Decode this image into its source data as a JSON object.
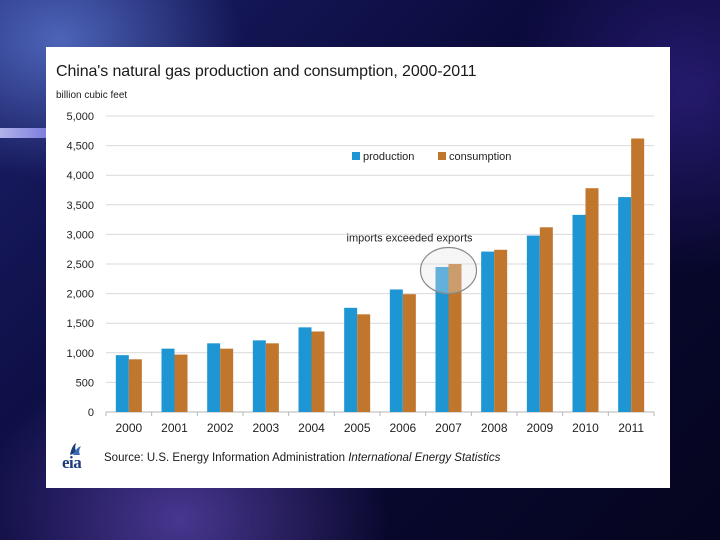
{
  "slide": {
    "source_prefix": "Source: U.S. Energy Information Administration",
    "source_publication": "International Energy Statistics",
    "logo_text": "eia"
  },
  "colors": {
    "production": "#1e96d4",
    "consumption": "#c0762c",
    "grid": "#d9d9d9",
    "axis_text": "#222222"
  },
  "chart_data": {
    "type": "bar",
    "title": "China's natural gas production and consumption, 2000-2011",
    "ylabel": "billion cubic feet",
    "xlabel": "",
    "categories": [
      "2000",
      "2001",
      "2002",
      "2003",
      "2004",
      "2005",
      "2006",
      "2007",
      "2008",
      "2009",
      "2010",
      "2011"
    ],
    "series": [
      {
        "name": "production",
        "values": [
          960,
          1070,
          1160,
          1210,
          1430,
          1760,
          2070,
          2450,
          2710,
          2980,
          3330,
          3630
        ]
      },
      {
        "name": "consumption",
        "values": [
          890,
          970,
          1070,
          1160,
          1360,
          1650,
          1990,
          2500,
          2740,
          3120,
          3780,
          4620
        ]
      }
    ],
    "ylim": [
      0,
      5000
    ],
    "yticks": [
      0,
      500,
      1000,
      1500,
      2000,
      2500,
      3000,
      3500,
      4000,
      4500,
      5000
    ],
    "ytick_labels": [
      "0",
      "500",
      "1,000",
      "1,500",
      "2,000",
      "2,500",
      "3,000",
      "3,500",
      "4,000",
      "4,500",
      "5,000"
    ],
    "grid": true,
    "legend": "top-center",
    "annotations": [
      {
        "text": "imports exceeded exports",
        "category": "2007"
      }
    ]
  }
}
